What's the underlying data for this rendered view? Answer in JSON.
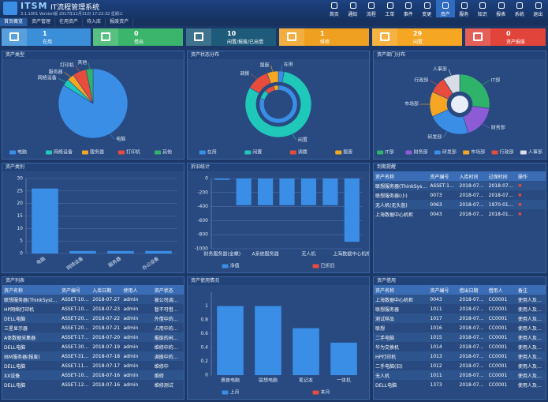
{
  "header": {
    "logo": "ITSM",
    "title": "IT流程管理系统",
    "info": "3.1.1001 Version版 2017年11月31日 17:22:32 星期三"
  },
  "nav": [
    "首页",
    "通知",
    "流程",
    "工单",
    "事件",
    "变更",
    "资产",
    "服务",
    "知识",
    "报表",
    "系统",
    "退出"
  ],
  "tabs": [
    "首页概览",
    "资产管理",
    "在用资产",
    "待入库",
    "报废资产"
  ],
  "cards": [
    {
      "value": 1,
      "label": "在用"
    },
    {
      "value": 0,
      "label": "借出"
    },
    {
      "value": 10,
      "label": "闲置/报废/已出借"
    },
    {
      "value": 1,
      "label": "维修"
    },
    {
      "value": 29,
      "label": "闲置"
    },
    {
      "value": 0,
      "label": "资产报废"
    }
  ],
  "chart_data": [
    {
      "type": "pie",
      "title": "资产类型",
      "categories": [
        "电脑",
        "网络设备",
        "服务器",
        "打印机",
        "其他"
      ],
      "values": [
        26,
        1,
        1,
        2,
        1
      ],
      "colors": [
        "#3a8ee6",
        "#1fc8b8",
        "#f5a623",
        "#e84c3d",
        "#2fb36a"
      ]
    },
    {
      "type": "donut",
      "title": "资产状态分布",
      "categories": [
        "在用",
        "闲置",
        "调拨",
        "报废"
      ],
      "colors": [
        "#3a8ee6",
        "#1fc8b8",
        "#e84c3d",
        "#f5a623"
      ],
      "rings": [
        {
          "values": [
            20,
            2,
            2,
            1
          ]
        },
        {
          "values": [
            1,
            29,
            4,
            2
          ]
        }
      ]
    },
    {
      "type": "donut",
      "title": "资产部门分布",
      "categories": [
        "IT部",
        "财务部",
        "研发部",
        "市场部",
        "行政部",
        "人事部"
      ],
      "colors": [
        "#2fb36a",
        "#8e5bd6",
        "#3a8ee6",
        "#f5a623",
        "#e84c3d",
        "#d8dde8"
      ],
      "rings": [
        {
          "values": [
            6,
            4,
            5,
            3,
            2,
            2
          ]
        }
      ]
    },
    {
      "type": "bar",
      "title": "资产类别",
      "categories": [
        "电脑",
        "网络设备",
        "服务器",
        "办公设备"
      ],
      "values": [
        26,
        1,
        1,
        1
      ],
      "color": "#3a8ee6",
      "ylim": [
        0,
        30
      ],
      "yticks": [
        0,
        5,
        10,
        15,
        20,
        25,
        30
      ],
      "grid": true
    },
    {
      "type": "bar",
      "title": "折旧统计",
      "categories": [
        "财务服务器(金蝶)",
        null,
        "A系统服务器",
        null,
        "无人机",
        null,
        "上海数据中心机柜"
      ],
      "series": [
        {
          "name": "净值",
          "color": "#3a8ee6",
          "values": [
            -20,
            -380,
            -380,
            -380,
            -380,
            -380,
            -900
          ]
        },
        {
          "name": "已折旧",
          "color": "#e84c3d",
          "values": [
            null,
            null,
            null,
            null,
            null,
            null,
            null
          ]
        }
      ],
      "ylim": [
        -1000,
        0
      ],
      "yticks": [
        0,
        -200,
        -400,
        -600,
        -800,
        -1000
      ],
      "grid": true
    },
    {
      "type": "bar",
      "title": "资产使用情况",
      "categories": [
        "惠普电脑",
        "联想电脑",
        "笔记本",
        "一体机"
      ],
      "series": [
        {
          "name": "上月",
          "color": "#3a8ee6",
          "values": [
            1,
            1,
            0.68,
            0.47
          ]
        },
        {
          "name": "本月",
          "color": "#e84c3d",
          "values": [
            null,
            null,
            null,
            null
          ]
        }
      ],
      "ylim": [
        0,
        1.2
      ],
      "yticks": [
        0,
        0.2,
        0.4,
        0.6,
        0.8,
        1
      ],
      "grid": false
    }
  ],
  "tables": [
    {
      "title": "到期提醒",
      "headers": [
        "资产名称",
        "资产编号",
        "入库时间",
        "过保时间",
        "操作"
      ],
      "rows": [
        [
          "联想服务器(ThinkSystem)",
          "ASSET-1001",
          "2018-07-26",
          "2018-07-29"
        ],
        [
          "联想服务器(小)",
          "0073",
          "2018-07-26",
          "2018-07-29"
        ],
        [
          "无人机(无头盔)",
          "0063",
          "2018-07-26",
          "1970-01-01"
        ],
        [
          "上海数据中心机柜",
          "0043",
          "2018-07-26",
          "2018-01-24"
        ]
      ]
    },
    {
      "title": "资产列表",
      "headers": [
        "资产名称",
        "资产编号",
        "入库日期",
        "使用人",
        "资产状态"
      ],
      "rows": [
        [
          "联想服务器(ThinkSystem)",
          "ASSET-1001",
          "2018-07-27",
          "admin",
          "被公司调拨报废"
        ],
        [
          "HP网络打印机",
          "ASSET-1047",
          "2018-07-23",
          "admin",
          "暂不可借出使用"
        ],
        [
          "DELL电脑",
          "ASSET-2011",
          "2018-07-22",
          "admin",
          "外借中的测试"
        ],
        [
          "三星显示器",
          "ASSET-2012",
          "2018-07-21",
          "admin",
          "占用中的测试"
        ],
        [
          "A体数据采集器",
          "ASSET-1744",
          "2018-07-20",
          "admin",
          "报废的闲置报废"
        ],
        [
          "DELL电脑",
          "ASSET-3021",
          "2018-07-19",
          "admin",
          "维修中的电脑"
        ],
        [
          "IBM服务器(报废)",
          "ASSET-3102",
          "2018-07-18",
          "admin",
          "调拨中的报废计算"
        ],
        [
          "DELL电脑",
          "ASSET-1111",
          "2018-07-17",
          "admin",
          "维修中"
        ],
        [
          "XX设备",
          "ASSET-1002",
          "2018-07-16",
          "admin",
          "维修"
        ],
        [
          "DELL电脑",
          "ASSET-1273",
          "2018-07-16",
          "admin",
          "维修测试"
        ]
      ]
    },
    {
      "title": "资产借用",
      "headers": [
        "资产名称",
        "资产编号",
        "借出日期",
        "借用人",
        "备注"
      ],
      "rows": [
        [
          "上海数据中心机柜",
          "0043",
          "2018-07-26",
          "CC0001",
          "使用人及借用信息"
        ],
        [
          "联想服务器",
          "1011",
          "2018-07-26",
          "CC0001",
          "使用人及借用"
        ],
        [
          "测试样品",
          "1017",
          "2018-07-26",
          "CC0001",
          "使用人及借用"
        ],
        [
          "联想",
          "1016",
          "2018-07-26",
          "CC0001",
          "使用人及借用"
        ],
        [
          "二手电脑",
          "1015",
          "2018-07-26",
          "CC0001",
          "使用人及借用"
        ],
        [
          "华为交换机",
          "1014",
          "2018-07-26",
          "CC0001",
          "使用人及借用"
        ],
        [
          "HP打印机",
          "1013",
          "2018-07-26",
          "CC0001",
          "使用人及借用"
        ],
        [
          "二手电脑(旧)",
          "1012",
          "2018-07-26",
          "CC0001",
          "使用人及借用"
        ],
        [
          "无人机",
          "1011",
          "2018-07-26",
          "CC0001",
          "使用人及借用"
        ],
        [
          "DELL电脑",
          "1373",
          "2018-07-26",
          "CC0001",
          "使用人及借用信息"
        ]
      ]
    }
  ]
}
